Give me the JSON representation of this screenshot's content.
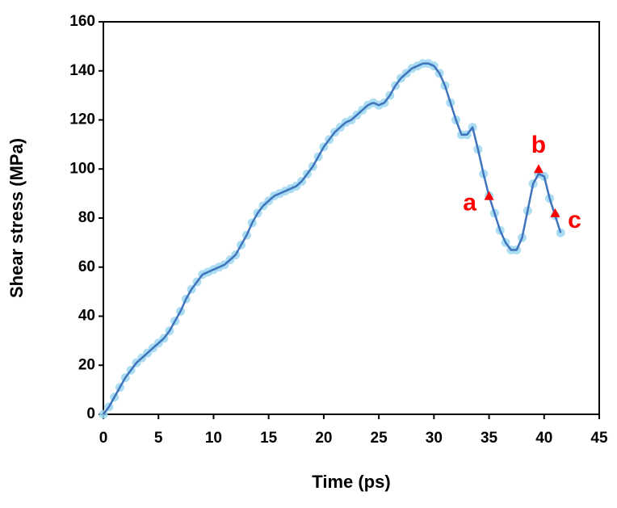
{
  "chart_data": {
    "type": "line",
    "x_label": "Time (ps)",
    "y_label": "Shear stress (MPa)",
    "x": [
      0,
      0.5,
      1,
      1.5,
      2,
      2.5,
      3,
      3.5,
      4,
      4.5,
      5,
      5.5,
      6,
      6.5,
      7,
      7.5,
      8,
      8.5,
      9,
      9.5,
      10,
      10.5,
      11,
      11.5,
      12,
      12.5,
      13,
      13.5,
      14,
      14.5,
      15,
      15.5,
      16,
      16.5,
      17,
      17.5,
      18,
      18.5,
      19,
      19.5,
      20,
      20.5,
      21,
      21.5,
      22,
      22.5,
      23,
      23.5,
      24,
      24.5,
      25,
      25.5,
      26,
      26.5,
      27,
      27.5,
      28,
      28.5,
      29,
      29.5,
      30,
      30.5,
      31,
      31.5,
      32,
      32.5,
      33,
      33.5,
      34,
      34.5,
      35,
      35.5,
      36,
      36.5,
      37,
      37.5,
      38,
      38.5,
      39,
      39.5,
      40,
      40.5,
      41,
      41.5
    ],
    "values": [
      0,
      3,
      7,
      11,
      15,
      18,
      21,
      23,
      25,
      27,
      29,
      31,
      34,
      38,
      42,
      47,
      51,
      54,
      57,
      58,
      59,
      60,
      61,
      63,
      65,
      69,
      73,
      78,
      82,
      85,
      87,
      89,
      90,
      91,
      92,
      93,
      95,
      98,
      101,
      105,
      109,
      112,
      115,
      117,
      119,
      120,
      122,
      124,
      126,
      127,
      126,
      127,
      130,
      134,
      137,
      139,
      141,
      142,
      143,
      143,
      142,
      139,
      134,
      127,
      120,
      114,
      114,
      117,
      108,
      98,
      89,
      82,
      75,
      70,
      67,
      67,
      72,
      83,
      94,
      98,
      97,
      88,
      81,
      74
    ],
    "color": "#3f74bd",
    "marker_color": "#9dd7f0",
    "annotations": [
      {
        "text": "a",
        "x": 35,
        "y": 89
      },
      {
        "text": "b",
        "x": 39.5,
        "y": 100
      },
      {
        "text": "c",
        "x": 41,
        "y": 82
      }
    ],
    "annotation_color": "#ff0000",
    "xlim": [
      0,
      45
    ],
    "xticks": [
      0,
      5,
      10,
      15,
      20,
      25,
      30,
      35,
      40,
      45
    ],
    "ylim": [
      0,
      160
    ],
    "yticks": [
      0,
      20,
      40,
      60,
      80,
      100,
      120,
      140,
      160
    ]
  }
}
